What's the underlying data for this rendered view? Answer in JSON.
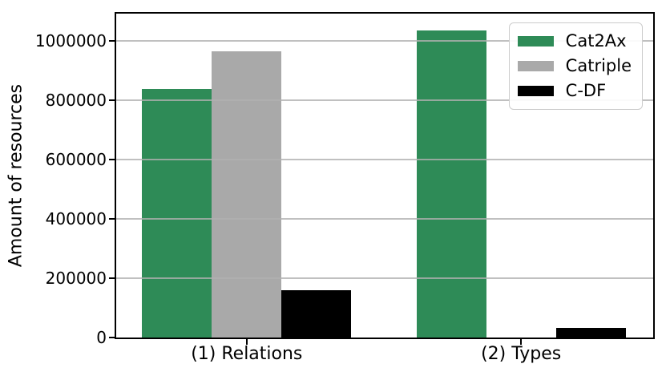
{
  "chart_data": {
    "type": "bar",
    "title": "",
    "xlabel": "",
    "ylabel": "Amount of resources",
    "categories": [
      "(1) Relations",
      "(2) Types"
    ],
    "series": [
      {
        "name": "Cat2Ax",
        "color": "#2e8b57",
        "values": [
          837000,
          1035000
        ]
      },
      {
        "name": "Catriple",
        "color": "#a9a9a9",
        "values": [
          963000,
          0
        ]
      },
      {
        "name": "C-DF",
        "color": "#000000",
        "values": [
          158000,
          33000
        ]
      }
    ],
    "ylim": [
      0,
      1091000
    ],
    "yticks": [
      0,
      200000,
      400000,
      600000,
      800000,
      1000000
    ],
    "ytick_labels": [
      "0",
      "200000",
      "400000",
      "600000",
      "800000",
      "1000000"
    ],
    "grid": true,
    "grid_color": "#b0b0b0",
    "legend_position": "upper right",
    "legend_entries": [
      "Cat2Ax",
      "Catriple",
      "C-DF"
    ]
  }
}
